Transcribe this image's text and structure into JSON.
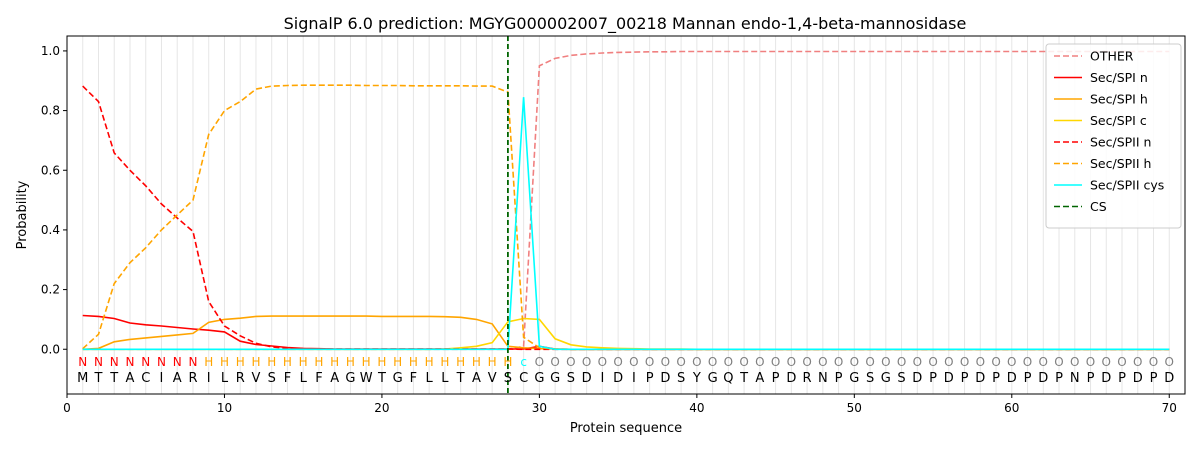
{
  "chart_data": {
    "type": "line",
    "title": "SignalP 6.0 prediction: MGYG000002007_00218 Mannan endo-1,4-beta-mannosidase",
    "xlabel": "Protein sequence",
    "ylabel": "Probability",
    "xlim": [
      0,
      71
    ],
    "ylim": [
      -0.15,
      1.05
    ],
    "xticks": [
      0,
      10,
      20,
      30,
      40,
      50,
      60,
      70
    ],
    "yticks": [
      0.0,
      0.2,
      0.4,
      0.6,
      0.8,
      1.0
    ],
    "ytick_labels": [
      "0.0",
      "0.2",
      "0.4",
      "0.6",
      "0.8",
      "1.0"
    ],
    "grid": "vertical lines at each residue",
    "legend_position": "top-right",
    "sequence": [
      "M",
      "T",
      "T",
      "A",
      "C",
      "I",
      "A",
      "R",
      "I",
      "L",
      "R",
      "V",
      "S",
      "F",
      "L",
      "F",
      "A",
      "G",
      "W",
      "T",
      "G",
      "F",
      "L",
      "L",
      "T",
      "A",
      "V",
      "S",
      "C",
      "G",
      "G",
      "S",
      "D",
      "I",
      "D",
      "I",
      "P",
      "D",
      "S",
      "Y",
      "G",
      "Q",
      "T",
      "A",
      "P",
      "D",
      "R",
      "N",
      "P",
      "G",
      "S",
      "G",
      "S",
      "D",
      "P",
      "D",
      "P",
      "D",
      "P",
      "D",
      "P",
      "D",
      "P",
      "N",
      "P",
      "D",
      "P",
      "D",
      "P",
      "D"
    ],
    "region_labels": [
      "N",
      "N",
      "N",
      "N",
      "N",
      "N",
      "N",
      "N",
      "H",
      "H",
      "H",
      "H",
      "H",
      "H",
      "H",
      "H",
      "H",
      "H",
      "H",
      "H",
      "H",
      "H",
      "H",
      "H",
      "H",
      "H",
      "H",
      "H",
      "C",
      "O",
      "O",
      "O",
      "O",
      "O",
      "O",
      "O",
      "O",
      "O",
      "O",
      "O",
      "O",
      "O",
      "O",
      "O",
      "O",
      "O",
      "O",
      "O",
      "O",
      "O",
      "O",
      "O",
      "O",
      "O",
      "O",
      "O",
      "O",
      "O",
      "O",
      "O",
      "O",
      "O",
      "O",
      "O",
      "O",
      "O",
      "O",
      "O",
      "O",
      "O"
    ],
    "region_colors": {
      "N": "#ff0000",
      "H": "#ffa500",
      "C": "#00ffff",
      "O": "#808080"
    },
    "cleavage_site": 28,
    "series": [
      {
        "name": "OTHER",
        "color": "#f08080",
        "dash": "dashed",
        "values": [
          0,
          0,
          0,
          0,
          0,
          0,
          0,
          0,
          0,
          0,
          0,
          0,
          0,
          0,
          0,
          0,
          0,
          0,
          0,
          0,
          0,
          0,
          0,
          0,
          0,
          0,
          0,
          0,
          0.01,
          0.95,
          0.975,
          0.985,
          0.99,
          0.993,
          0.995,
          0.996,
          0.997,
          0.997,
          0.998,
          0.998,
          0.998,
          0.998,
          0.998,
          0.998,
          0.998,
          0.998,
          0.998,
          0.998,
          0.998,
          0.998,
          0.998,
          0.998,
          0.998,
          0.998,
          0.998,
          0.998,
          0.998,
          0.998,
          0.998,
          0.998,
          0.998,
          0.998,
          0.998,
          0.998,
          0.998,
          0.998,
          0.998,
          0.998,
          0.998,
          0.998
        ]
      },
      {
        "name": "Sec/SPI n",
        "color": "#ff0000",
        "dash": "solid",
        "values": [
          0.113,
          0.11,
          0.103,
          0.088,
          0.082,
          0.078,
          0.073,
          0.068,
          0.064,
          0.058,
          0.027,
          0.016,
          0.011,
          0.006,
          0.003,
          0.002,
          0.001,
          0.001,
          0.001,
          0.001,
          0.001,
          0.001,
          0.001,
          0.001,
          0.001,
          0.001,
          0.001,
          0.001,
          0.001,
          0.01,
          0.001,
          0,
          0,
          0,
          0,
          0,
          0,
          0,
          0,
          0,
          0,
          0,
          0,
          0,
          0,
          0,
          0,
          0,
          0,
          0,
          0,
          0,
          0,
          0,
          0,
          0,
          0,
          0,
          0,
          0,
          0,
          0,
          0,
          0,
          0,
          0,
          0,
          0,
          0,
          0
        ]
      },
      {
        "name": "Sec/SPI h",
        "color": "#ffa500",
        "dash": "solid",
        "values": [
          0.0,
          0.003,
          0.025,
          0.033,
          0.038,
          0.043,
          0.048,
          0.053,
          0.09,
          0.1,
          0.104,
          0.11,
          0.111,
          0.111,
          0.111,
          0.111,
          0.111,
          0.111,
          0.111,
          0.11,
          0.11,
          0.11,
          0.11,
          0.109,
          0.107,
          0.1,
          0.085,
          0.01,
          0.005,
          0.002,
          0.001,
          0,
          0,
          0,
          0,
          0,
          0,
          0,
          0,
          0,
          0,
          0,
          0,
          0,
          0,
          0,
          0,
          0,
          0,
          0,
          0,
          0,
          0,
          0,
          0,
          0,
          0,
          0,
          0,
          0,
          0,
          0,
          0,
          0,
          0,
          0,
          0,
          0,
          0,
          0
        ]
      },
      {
        "name": "Sec/SPI c",
        "color": "#ffd700",
        "dash": "solid",
        "values": [
          0,
          0,
          0,
          0,
          0,
          0,
          0,
          0,
          0,
          0,
          0,
          0,
          0,
          0,
          0,
          0,
          0,
          0,
          0,
          0,
          0,
          0,
          0,
          0.001,
          0.005,
          0.01,
          0.022,
          0.092,
          0.103,
          0.1,
          0.035,
          0.015,
          0.008,
          0.005,
          0.003,
          0.002,
          0.001,
          0.001,
          0.001,
          0,
          0,
          0,
          0,
          0,
          0,
          0,
          0,
          0,
          0,
          0,
          0,
          0,
          0,
          0,
          0,
          0,
          0,
          0,
          0,
          0,
          0,
          0,
          0,
          0,
          0,
          0,
          0,
          0,
          0,
          0
        ]
      },
      {
        "name": "Sec/SPII n",
        "color": "#ff0000",
        "dash": "dashed",
        "values": [
          0.882,
          0.83,
          0.658,
          0.6,
          0.548,
          0.487,
          0.44,
          0.395,
          0.16,
          0.078,
          0.045,
          0.02,
          0.008,
          0.003,
          0.002,
          0.001,
          0.001,
          0.001,
          0.001,
          0.001,
          0.001,
          0.001,
          0.001,
          0.001,
          0.001,
          0.001,
          0.001,
          0.001,
          0,
          0,
          0,
          0,
          0,
          0,
          0,
          0,
          0,
          0,
          0,
          0,
          0,
          0,
          0,
          0,
          0,
          0,
          0,
          0,
          0,
          0,
          0,
          0,
          0,
          0,
          0,
          0,
          0,
          0,
          0,
          0,
          0,
          0,
          0,
          0,
          0,
          0,
          0,
          0,
          0,
          0
        ]
      },
      {
        "name": "Sec/SPII h",
        "color": "#ffa500",
        "dash": "dashed",
        "values": [
          0.002,
          0.05,
          0.22,
          0.29,
          0.34,
          0.4,
          0.45,
          0.5,
          0.72,
          0.8,
          0.83,
          0.872,
          0.882,
          0.884,
          0.885,
          0.885,
          0.885,
          0.885,
          0.884,
          0.884,
          0.884,
          0.883,
          0.883,
          0.883,
          0.883,
          0.882,
          0.882,
          0.862,
          0.04,
          0.005,
          0.001,
          0,
          0,
          0,
          0,
          0,
          0,
          0,
          0,
          0,
          0,
          0,
          0,
          0,
          0,
          0,
          0,
          0,
          0,
          0,
          0,
          0,
          0,
          0,
          0,
          0,
          0,
          0,
          0,
          0,
          0,
          0,
          0,
          0,
          0,
          0,
          0,
          0,
          0,
          0
        ]
      },
      {
        "name": "Sec/SPII cys",
        "color": "#00ffff",
        "dash": "solid",
        "values": [
          0,
          0,
          0,
          0,
          0,
          0,
          0,
          0,
          0,
          0,
          0,
          0,
          0,
          0,
          0,
          0,
          0,
          0,
          0,
          0,
          0,
          0,
          0,
          0,
          0,
          0,
          0,
          0,
          0.845,
          0.01,
          0,
          0,
          0,
          0,
          0,
          0,
          0,
          0,
          0,
          0,
          0,
          0,
          0,
          0,
          0,
          0,
          0,
          0,
          0,
          0,
          0,
          0,
          0,
          0,
          0,
          0,
          0,
          0,
          0,
          0,
          0,
          0,
          0,
          0,
          0,
          0,
          0,
          0,
          0,
          0
        ]
      },
      {
        "name": "CS",
        "color": "#006400",
        "dash": "dashed",
        "values": []
      }
    ]
  }
}
